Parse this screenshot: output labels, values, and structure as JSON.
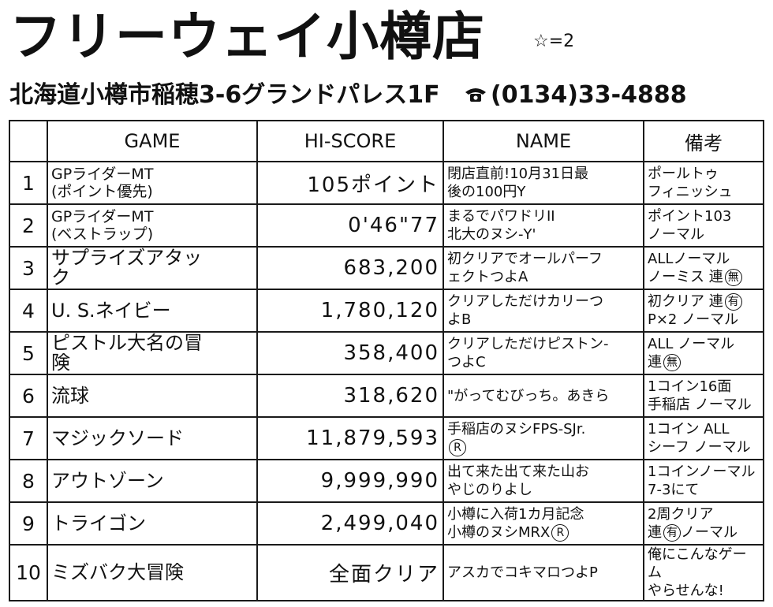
{
  "store": {
    "name": "フリーウェイ小樽店",
    "rating": "☆=2",
    "address": "北海道小樽市稲穂3-6グランドパレス1F",
    "phone": "(0134)33-4888",
    "phone_icon": "telephone-icon"
  },
  "table": {
    "headers": {
      "num": "",
      "game": "GAME",
      "score": "HI-SCORE",
      "name": "NAME",
      "note": "備考"
    },
    "rows": [
      {
        "num": "1",
        "game": "GPライダーMT",
        "game2": "(ポイント優先)",
        "score": "105ポイント",
        "name": "閉店直前!10月31日最",
        "name2": "後の100円Y",
        "note": "ポールトゥ",
        "note2": "フィニッシュ"
      },
      {
        "num": "2",
        "game": "GPライダーMT",
        "game2": "(ベストラップ)",
        "score": "0'46\"77",
        "name": "まるでパワドリII",
        "name2": "北大のヌシ-Y'",
        "note": "ポイント103",
        "note2": "ノーマル"
      },
      {
        "num": "3",
        "game": "サプライズアタッ",
        "game2": "ク",
        "score": "683,200",
        "name": "初クリアでオールパーフ",
        "name2": "ェクトつよA",
        "note": "ALLノーマル",
        "note2": "ノーミス 連",
        "note2_mark": "無"
      },
      {
        "num": "4",
        "game": "U. S.ネイビー",
        "game2": "",
        "score": "1,780,120",
        "name": "クリアしただけカリーつ",
        "name2": "よB",
        "note": "初クリア 連",
        "note_mark": "有",
        "note2": "P×2 ノーマル"
      },
      {
        "num": "5",
        "game": "ピストル大名の冒",
        "game2": "険",
        "score": "358,400",
        "name": "クリアしただけピストン-",
        "name2": "つよC",
        "note": "ALL ノーマル",
        "note2": "連",
        "note2_mark": "無"
      },
      {
        "num": "6",
        "game": "流球",
        "game2": "",
        "score": "318,620",
        "name": "\"がってむびっち。あきら",
        "name2": "",
        "note": "1コイン16面",
        "note2": "手稲店 ノーマル"
      },
      {
        "num": "7",
        "game": "マジックソード",
        "game2": "",
        "score": "11,879,593",
        "name": "手稲店のヌシFPS-SJr.",
        "name2": "",
        "name2_mark": "R",
        "note": "1コイン ALL",
        "note2": "シーフ ノーマル"
      },
      {
        "num": "8",
        "game": "アウトゾーン",
        "game2": "",
        "score": "9,999,990",
        "name": "出て来た出て来た山お",
        "name2": "やじのりよし",
        "note": "1コインノーマル",
        "note2": "7-3にて"
      },
      {
        "num": "9",
        "game": "トライゴン",
        "game2": "",
        "score": "2,499,040",
        "name": "小樽に入荷1カ月記念",
        "name2": "小樽のヌシMRX",
        "name2_mark": "R",
        "note": "2周クリア",
        "note2": "連",
        "note2_mark": "有",
        "note2_tail": "ノーマル"
      },
      {
        "num": "10",
        "game": "ミズバク大冒険",
        "game2": "",
        "score": "全面クリア",
        "name": "アスカでコキマロつよP",
        "name2": "",
        "note": "俺にこんなゲーム",
        "note2": "やらせんな!"
      }
    ]
  }
}
